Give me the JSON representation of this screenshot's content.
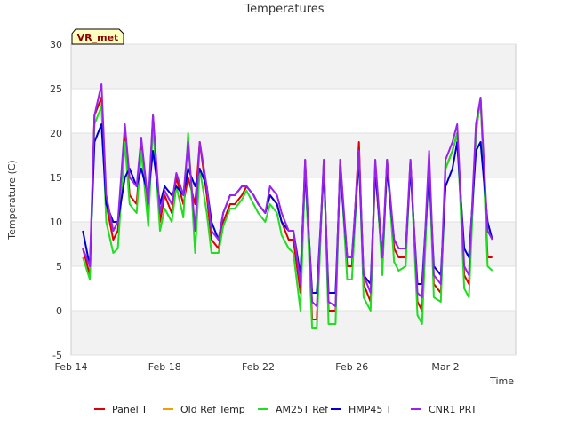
{
  "chart_data": {
    "type": "line",
    "title": "Temperatures",
    "xlabel": "Time",
    "ylabel": "Temperature (C)",
    "ylim": [
      -5,
      30
    ],
    "xlim": [
      0,
      19
    ],
    "yticks": [
      -5,
      0,
      5,
      10,
      15,
      20,
      25,
      30
    ],
    "xticks": [
      {
        "value": 0,
        "label": "Feb 14"
      },
      {
        "value": 4,
        "label": "Feb 18"
      },
      {
        "value": 8,
        "label": "Feb 22"
      },
      {
        "value": 12,
        "label": "Feb 26"
      },
      {
        "value": 16,
        "label": "Mar 2"
      }
    ],
    "badge": "VR_met",
    "series": [
      {
        "name": "Panel T",
        "color": "#dd0000",
        "x": [
          0.5,
          0.8,
          1.0,
          1.3,
          1.5,
          1.8,
          2.0,
          2.3,
          2.5,
          2.8,
          3.0,
          3.3,
          3.5,
          3.8,
          4.0,
          4.3,
          4.5,
          4.8,
          5.0,
          5.3,
          5.5,
          5.8,
          6.0,
          6.3,
          6.5,
          6.8,
          7.0,
          7.3,
          7.5,
          7.8,
          8.0,
          8.3,
          8.5,
          8.8,
          9.0,
          9.3,
          9.5,
          9.8,
          10.0,
          10.3,
          10.5,
          10.8,
          11.0,
          11.3,
          11.5,
          11.8,
          12.0,
          12.3,
          12.5,
          12.8,
          13.0,
          13.3,
          13.5,
          13.8,
          14.0,
          14.3,
          14.5,
          14.8,
          15.0,
          15.3,
          15.5,
          15.8,
          16.0,
          16.3,
          16.5,
          16.8,
          17.0,
          17.3,
          17.5,
          17.8,
          18.0
        ],
        "y": [
          7,
          4,
          22,
          24,
          12,
          8,
          9,
          20,
          13,
          12,
          19,
          11,
          22,
          10,
          13,
          11,
          15,
          12,
          15,
          12,
          19,
          13,
          8,
          7,
          10,
          12,
          12,
          13,
          14,
          13,
          12,
          11,
          13,
          12,
          10,
          8,
          8,
          2,
          17,
          -1,
          -1,
          17,
          0,
          0,
          17,
          5,
          5,
          19,
          3,
          1,
          16,
          5,
          17,
          7,
          6,
          6,
          17,
          1,
          0,
          17,
          3,
          2,
          16,
          18,
          20,
          4,
          3,
          20,
          24,
          6,
          6
        ]
      },
      {
        "name": "Old Ref Temp",
        "color": "#f0a000",
        "x": [],
        "y": []
      },
      {
        "name": "AM25T Ref",
        "color": "#22dd22",
        "x": [
          0.5,
          0.8,
          1.0,
          1.3,
          1.5,
          1.8,
          2.0,
          2.3,
          2.5,
          2.8,
          3.0,
          3.3,
          3.5,
          3.8,
          4.0,
          4.3,
          4.5,
          4.8,
          5.0,
          5.3,
          5.5,
          5.8,
          6.0,
          6.3,
          6.5,
          6.8,
          7.0,
          7.3,
          7.5,
          7.8,
          8.0,
          8.3,
          8.5,
          8.8,
          9.0,
          9.3,
          9.5,
          9.8,
          10.0,
          10.3,
          10.5,
          10.8,
          11.0,
          11.3,
          11.5,
          11.8,
          12.0,
          12.3,
          12.5,
          12.8,
          13.0,
          13.3,
          13.5,
          13.8,
          14.0,
          14.3,
          14.5,
          14.8,
          15.0,
          15.3,
          15.5,
          15.8,
          16.0,
          16.3,
          16.5,
          16.8,
          17.0,
          17.3,
          17.5,
          17.8,
          18.0
        ],
        "y": [
          6,
          3.5,
          21,
          23,
          10,
          6.5,
          7,
          19,
          12,
          11,
          18,
          9.5,
          21,
          9,
          11.5,
          10,
          14,
          10.5,
          20,
          6.5,
          16,
          11,
          6.5,
          6.5,
          9.5,
          11.5,
          11.5,
          12.5,
          13.5,
          12,
          11,
          10,
          12,
          11,
          8.5,
          7,
          6.5,
          0,
          16,
          -2,
          -2,
          17,
          -1.5,
          -1.5,
          17,
          3.5,
          3.5,
          18,
          1.5,
          0,
          17,
          4,
          17,
          5.5,
          4.5,
          5,
          17,
          -0.5,
          -1.5,
          17,
          1.5,
          1,
          16,
          18,
          20,
          2.5,
          1.5,
          20,
          24,
          5,
          4.5
        ]
      },
      {
        "name": "HMP45 T",
        "color": "#0000cc",
        "x": [
          0.5,
          0.8,
          1.0,
          1.3,
          1.5,
          1.8,
          2.0,
          2.3,
          2.5,
          2.8,
          3.0,
          3.3,
          3.5,
          3.8,
          4.0,
          4.3,
          4.5,
          4.8,
          5.0,
          5.3,
          5.5,
          5.8,
          6.0,
          6.3,
          6.5,
          6.8,
          7.0,
          7.3,
          7.5,
          7.8,
          8.0,
          8.3,
          8.5,
          8.8,
          9.0,
          9.3,
          9.5,
          9.8,
          10.0,
          10.3,
          10.5,
          10.8,
          11.0,
          11.3,
          11.5,
          11.8,
          12.0,
          12.3,
          12.5,
          12.8,
          13.0,
          13.3,
          13.5,
          13.8,
          14.0,
          14.3,
          14.5,
          14.8,
          15.0,
          15.3,
          15.5,
          15.8,
          16.0,
          16.3,
          16.5,
          16.8,
          17.0,
          17.3,
          17.5,
          17.8,
          18.0
        ],
        "y": [
          9,
          5,
          19,
          21,
          12,
          10,
          10,
          15,
          16,
          14,
          16,
          13,
          18,
          12,
          14,
          13,
          14,
          13,
          16,
          14,
          16,
          14,
          10,
          8,
          11,
          13,
          13,
          14,
          14,
          13,
          12,
          11,
          13,
          12,
          10,
          9,
          9,
          4,
          16,
          2,
          2,
          16,
          2,
          2,
          16,
          6,
          6,
          17,
          4,
          3,
          16,
          6,
          16,
          8,
          7,
          7,
          16,
          3,
          3,
          16,
          5,
          4,
          14,
          16,
          19,
          7,
          6,
          18,
          19,
          10,
          8
        ]
      },
      {
        "name": "CNR1 PRT",
        "color": "#9922ee",
        "x": [
          0.5,
          0.8,
          1.0,
          1.3,
          1.5,
          1.8,
          2.0,
          2.3,
          2.5,
          2.8,
          3.0,
          3.3,
          3.5,
          3.8,
          4.0,
          4.3,
          4.5,
          4.8,
          5.0,
          5.3,
          5.5,
          5.8,
          6.0,
          6.3,
          6.5,
          6.8,
          7.0,
          7.3,
          7.5,
          7.8,
          8.0,
          8.3,
          8.5,
          8.8,
          9.0,
          9.3,
          9.5,
          9.8,
          10.0,
          10.3,
          10.5,
          10.8,
          11.0,
          11.3,
          11.5,
          11.8,
          12.0,
          12.3,
          12.5,
          12.8,
          13.0,
          13.3,
          13.5,
          13.8,
          14.0,
          14.3,
          14.5,
          14.8,
          15.0,
          15.3,
          15.5,
          15.8,
          16.0,
          16.3,
          16.5,
          16.8,
          17.0,
          17.3,
          17.5,
          17.8,
          18.0
        ],
        "y": [
          7,
          5,
          22,
          25.5,
          13,
          9,
          10,
          21,
          15,
          14,
          19.5,
          12,
          22,
          11,
          13.5,
          12,
          15.5,
          13,
          19,
          9,
          19,
          14,
          9,
          8,
          11,
          13,
          13,
          14,
          14,
          13,
          12,
          11,
          14,
          13,
          11,
          9,
          9,
          3,
          17,
          1,
          0.5,
          17,
          1,
          0.5,
          17,
          6,
          6,
          18,
          4,
          2,
          17,
          6,
          17,
          8,
          7,
          7,
          17,
          2,
          1.5,
          18,
          4,
          3,
          17,
          19,
          21,
          5,
          4,
          21,
          24,
          9,
          8
        ]
      }
    ]
  }
}
